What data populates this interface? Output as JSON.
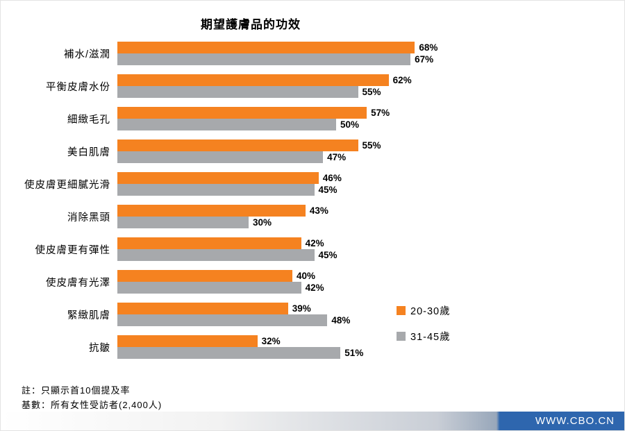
{
  "chart_data": {
    "type": "bar",
    "orientation": "horizontal",
    "title": "期望護膚品的功效",
    "categories": [
      "補水/滋潤",
      "平衡皮膚水份",
      "細緻毛孔",
      "美白肌膚",
      "使皮膚更細膩光滑",
      "消除黑頭",
      "使皮膚更有彈性",
      "使皮膚有光澤",
      "緊緻肌膚",
      "抗皺"
    ],
    "series": [
      {
        "name": "20-30歲",
        "color": "#F58220",
        "values": [
          68,
          62,
          57,
          55,
          46,
          43,
          42,
          40,
          39,
          32
        ]
      },
      {
        "name": "31-45歲",
        "color": "#A7A9AC",
        "values": [
          67,
          55,
          50,
          47,
          45,
          30,
          45,
          42,
          48,
          51
        ]
      }
    ],
    "value_suffix": "%",
    "xlim": [
      0,
      75
    ],
    "grid": false,
    "legend_position": "right-middle"
  },
  "notes": [
    "註：只顯示首10個提及率",
    "基數：所有女性受訪者(2,400人)"
  ],
  "watermark": {
    "text": "WWW.CBO.CN",
    "banner_blue": "#2e66ae"
  }
}
